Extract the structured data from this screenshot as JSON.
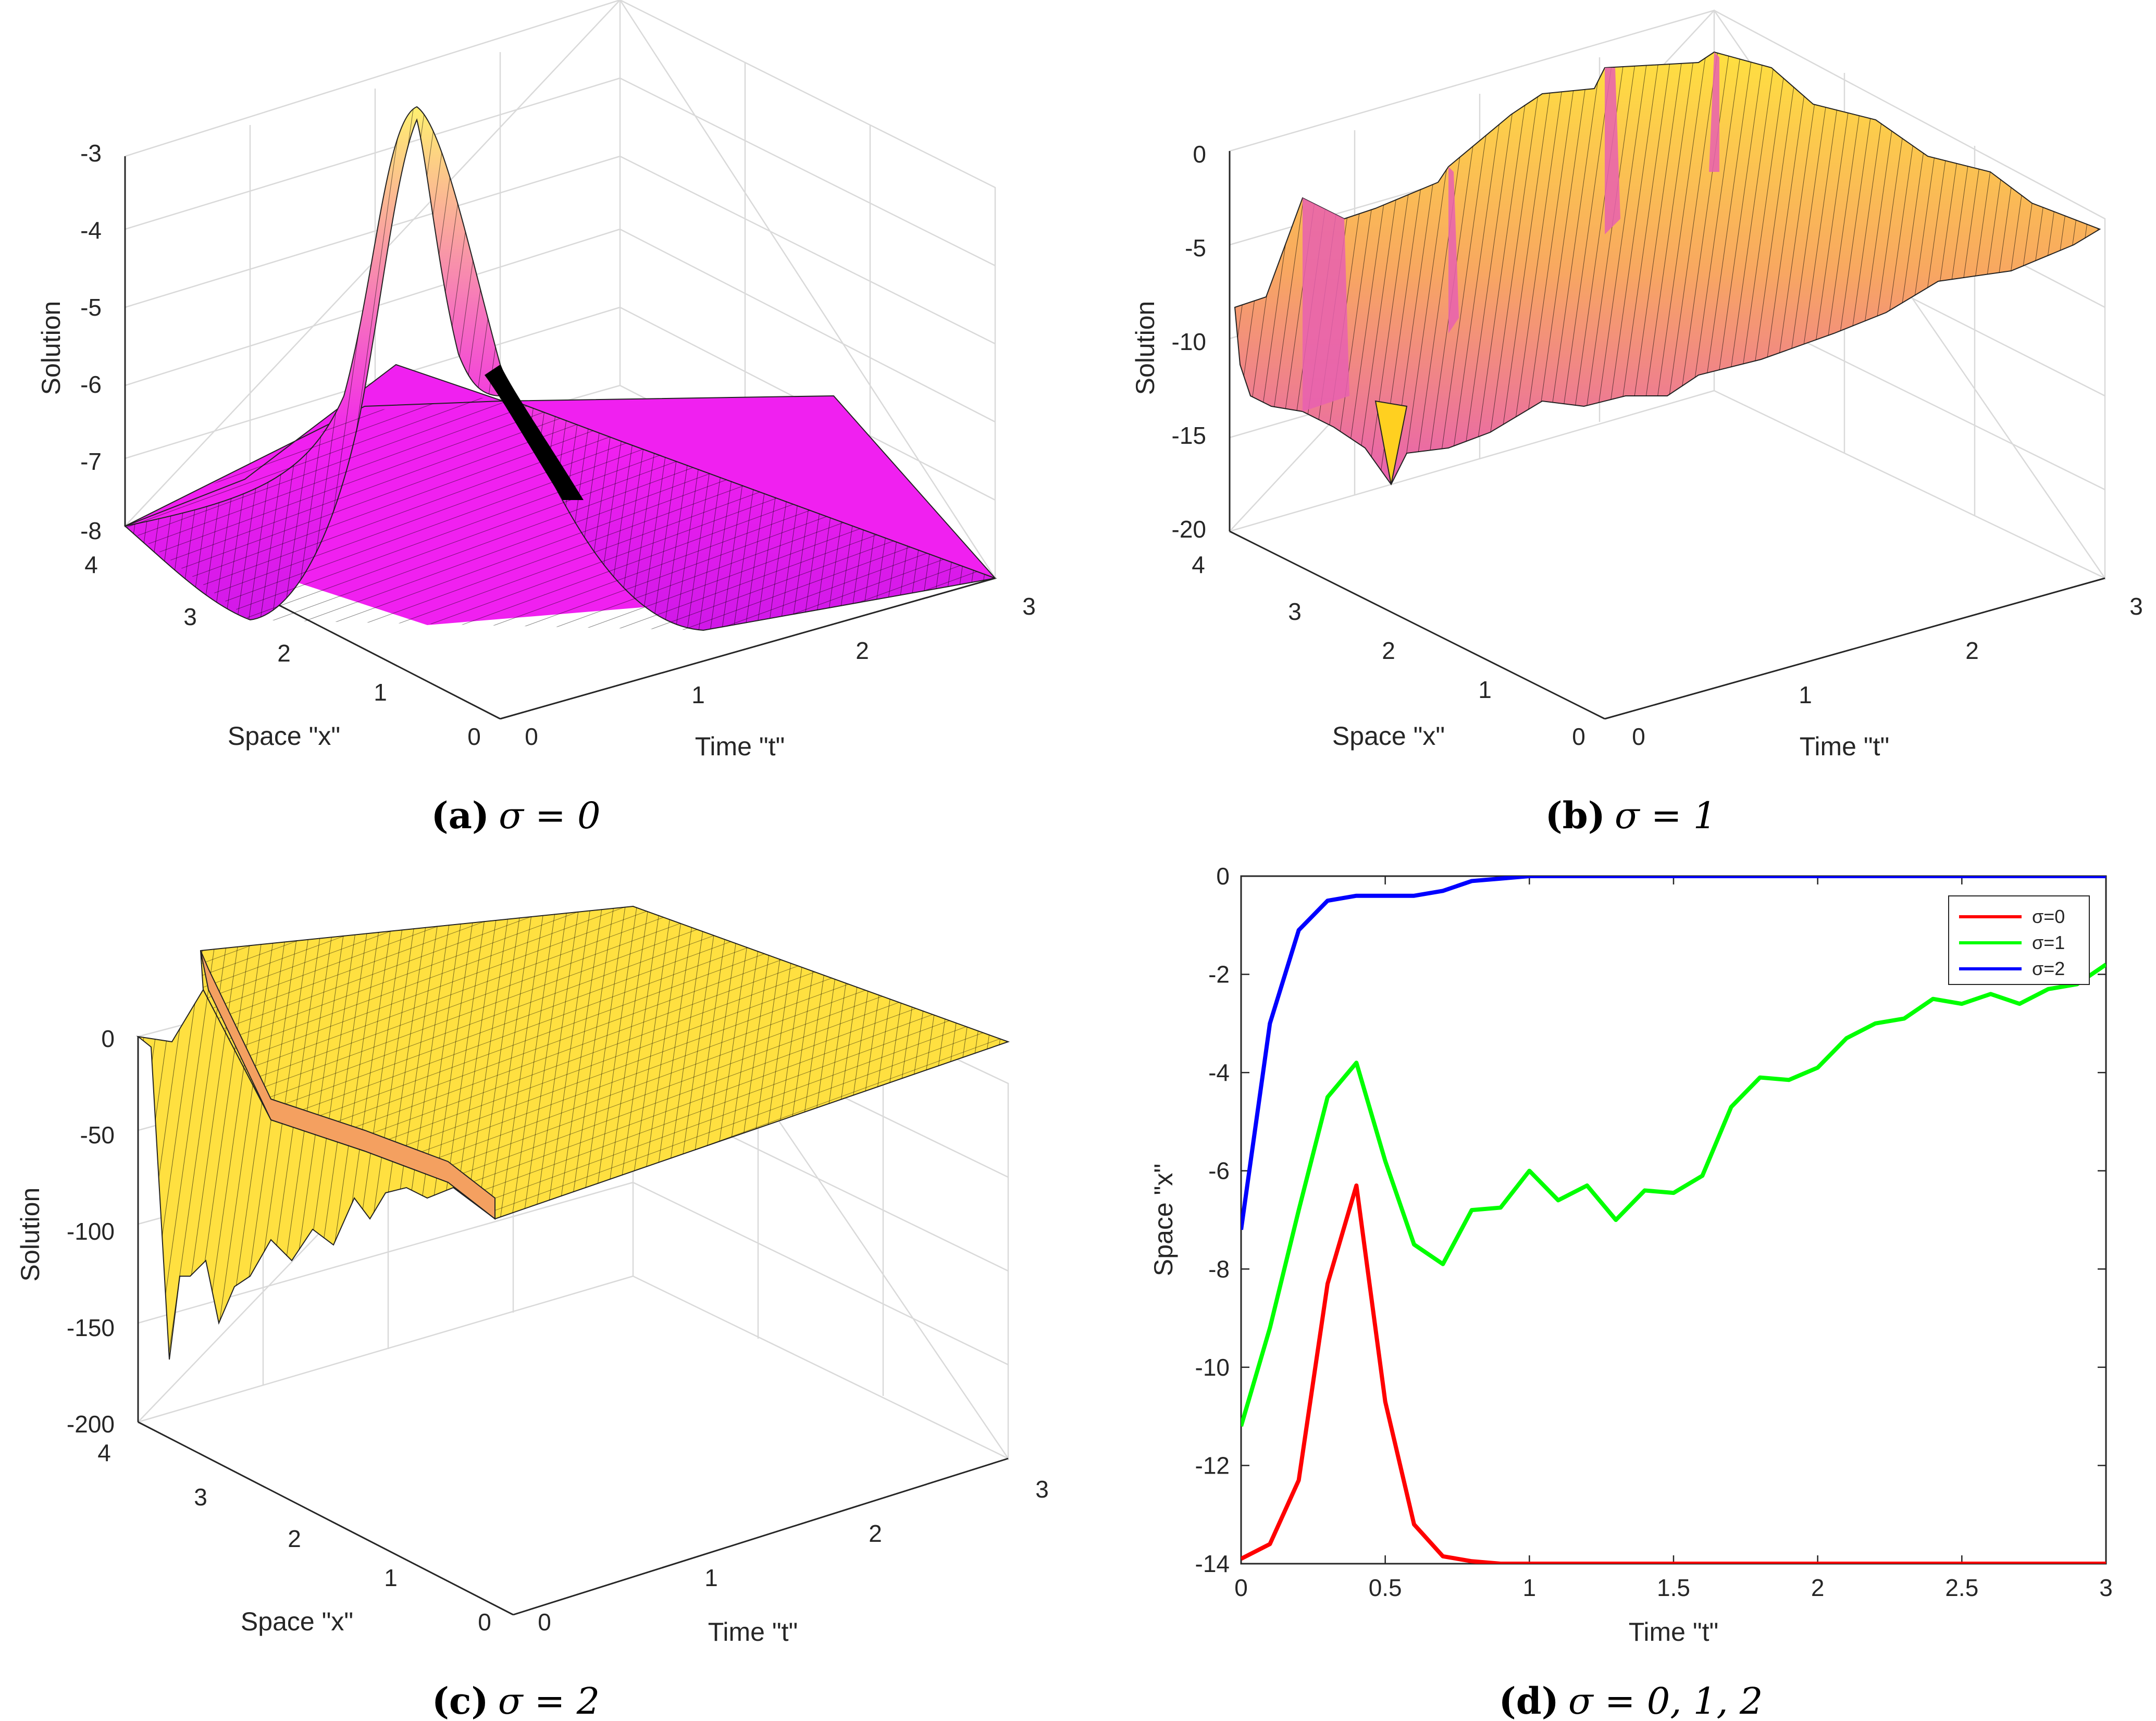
{
  "chart_data": [
    {
      "type": "surface",
      "id": "a",
      "caption": {
        "letter": "(a)",
        "text": "σ = 0"
      },
      "zlabel": "Solution",
      "xlabel": "Space \"x\"",
      "ylabel": "Time \"t\"",
      "z_ticks": [
        "-3",
        "-4",
        "-5",
        "-6",
        "-7",
        "-8"
      ],
      "x_ticks": [
        "4",
        "3",
        "2",
        "1",
        "0"
      ],
      "t_ticks": [
        "0",
        "1",
        "2",
        "3"
      ],
      "zlim": [
        -8,
        -3
      ],
      "xlim": [
        0,
        4
      ],
      "tlim": [
        0,
        3
      ],
      "colormap": [
        "#c030d8",
        "#ff00ff",
        "#ffe070"
      ],
      "description_values": {
        "peak": -3.3,
        "baseline": -8
      }
    },
    {
      "type": "surface",
      "id": "b",
      "caption": {
        "letter": "(b)",
        "text": "σ = 1"
      },
      "zlabel": "Solution",
      "xlabel": "Space \"x\"",
      "ylabel": "Time \"t\"",
      "z_ticks": [
        "0",
        "-5",
        "-10",
        "-15",
        "-20"
      ],
      "x_ticks": [
        "4",
        "3",
        "2",
        "1",
        "0"
      ],
      "t_ticks": [
        "0",
        "1",
        "2",
        "3"
      ],
      "zlim": [
        -20,
        0
      ],
      "xlim": [
        0,
        4
      ],
      "tlim": [
        0,
        3
      ],
      "colormap": [
        "#e060a0",
        "#f4a060",
        "#ffe040"
      ]
    },
    {
      "type": "surface",
      "id": "c",
      "caption": {
        "letter": "(c)",
        "text": "σ = 2"
      },
      "zlabel": "Solution",
      "xlabel": "Space \"x\"",
      "ylabel": "Time \"t\"",
      "z_ticks": [
        "0",
        "-50",
        "-100",
        "-150",
        "-200"
      ],
      "x_ticks": [
        "4",
        "3",
        "2",
        "1",
        "0"
      ],
      "t_ticks": [
        "0",
        "1",
        "2",
        "3"
      ],
      "zlim": [
        -200,
        0
      ],
      "xlim": [
        0,
        4
      ],
      "tlim": [
        0,
        3
      ],
      "colormap": [
        "#f4a060",
        "#ffe040"
      ]
    },
    {
      "type": "line",
      "id": "d",
      "caption": {
        "letter": "(d)",
        "text": "σ = 0, 1, 2"
      },
      "xlabel": "Time \"t\"",
      "ylabel": "Space \"x\"",
      "xlim": [
        0,
        3
      ],
      "ylim": [
        -14,
        0
      ],
      "x_ticks": [
        "0",
        "0.5",
        "1",
        "1.5",
        "2",
        "2.5",
        "3"
      ],
      "y_ticks": [
        "0",
        "-2",
        "-4",
        "-6",
        "-8",
        "-10",
        "-12",
        "-14"
      ],
      "legend_position": "top-right",
      "x": [
        0,
        0.1,
        0.2,
        0.3,
        0.4,
        0.5,
        0.6,
        0.7,
        0.8,
        0.9,
        1.0,
        1.1,
        1.2,
        1.3,
        1.4,
        1.5,
        1.6,
        1.7,
        1.8,
        1.9,
        2.0,
        2.1,
        2.2,
        2.3,
        2.4,
        2.5,
        2.6,
        2.7,
        2.8,
        2.9,
        3.0
      ],
      "series": [
        {
          "name": "σ=0",
          "color": "#ff0000",
          "values": [
            -13.9,
            -13.6,
            -12.3,
            -8.3,
            -6.3,
            -10.7,
            -13.2,
            -13.85,
            -13.95,
            -14,
            -14,
            -14,
            -14,
            -14,
            -14,
            -14,
            -14,
            -14,
            -14,
            -14,
            -14,
            -14,
            -14,
            -14,
            -14,
            -14,
            -14,
            -14,
            -14,
            -14,
            -14
          ]
        },
        {
          "name": "σ=1",
          "color": "#00ff00",
          "values": [
            -11.2,
            -9.2,
            -6.8,
            -4.5,
            -3.8,
            -5.8,
            -7.5,
            -7.9,
            -6.8,
            -6.75,
            -6.0,
            -6.6,
            -6.3,
            -7.0,
            -6.4,
            -6.45,
            -6.1,
            -4.7,
            -4.1,
            -4.15,
            -3.9,
            -3.3,
            -3.0,
            -2.9,
            -2.5,
            -2.6,
            -2.4,
            -2.6,
            -2.3,
            -2.2,
            -1.8
          ]
        },
        {
          "name": "σ=2",
          "color": "#0000ff",
          "values": [
            -7.2,
            -3.0,
            -1.1,
            -0.5,
            -0.4,
            -0.4,
            -0.4,
            -0.3,
            -0.1,
            -0.05,
            0,
            0,
            0,
            0,
            0,
            0,
            0,
            0,
            0,
            0,
            0,
            0,
            0,
            0,
            0,
            0,
            0,
            0,
            0,
            0,
            0
          ]
        }
      ]
    }
  ]
}
